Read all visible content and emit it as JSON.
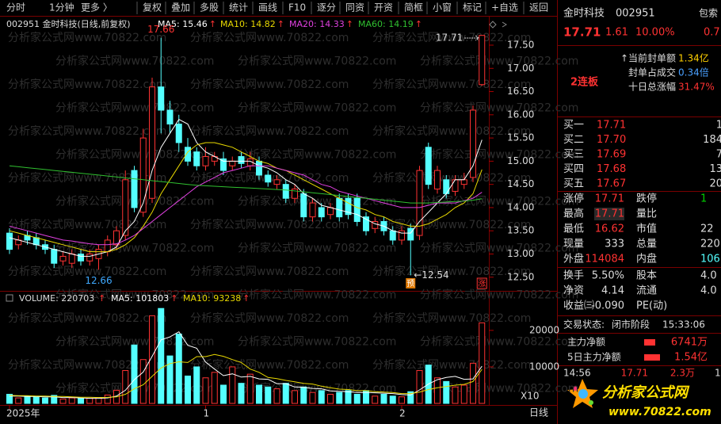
{
  "toolbar": [
    "分时",
    "1分钟",
    "更多 〉",
    "复权",
    "叠加",
    "多股",
    "统计",
    "画线",
    "F10",
    "逐分",
    "同资",
    "开资",
    "简框",
    "小窗",
    "标记",
    "+自选",
    "返回"
  ],
  "watermark": "分析家公式网www.70822.com",
  "chart_data": [
    {
      "type": "candlestick",
      "title": "002951 金时科技(日线,前复权)",
      "categories": [
        "2025年",
        null,
        null,
        null,
        null,
        null,
        null,
        null,
        null,
        null,
        null,
        null,
        null,
        null,
        null,
        null,
        null,
        null,
        null,
        null,
        null,
        null,
        "1",
        null,
        null,
        null,
        null,
        null,
        null,
        null,
        null,
        null,
        null,
        null,
        null,
        null,
        null,
        null,
        null,
        null,
        null,
        null,
        null,
        null,
        "2",
        null,
        null,
        null,
        null,
        null,
        null,
        null,
        null,
        null
      ],
      "open": [
        13.45,
        13.2,
        13.4,
        13.35,
        13.2,
        13.1,
        12.85,
        12.8,
        13.0,
        12.85,
        12.9,
        13.05,
        13.2,
        13.4,
        14.8,
        13.9,
        14.2,
        16.6,
        16.1,
        15.8,
        15.3,
        15.2,
        14.9,
        15.0,
        15.05,
        14.9,
        15.1,
        14.9,
        15.0,
        14.7,
        14.5,
        14.5,
        14.2,
        14.3,
        13.8,
        14.0,
        13.85,
        14.2,
        14.2,
        14.2,
        13.8,
        13.55,
        13.7,
        13.5,
        13.3,
        13.55,
        13.4,
        15.3,
        14.4,
        14.6,
        14.35,
        14.5,
        14.65,
        16.65
      ],
      "high": [
        13.55,
        13.4,
        13.5,
        13.45,
        13.3,
        13.2,
        13.05,
        13.1,
        13.1,
        13.1,
        13.2,
        13.4,
        13.6,
        14.8,
        14.9,
        15.7,
        16.8,
        17.66,
        16.3,
        16.0,
        15.5,
        15.3,
        15.3,
        15.2,
        15.2,
        15.1,
        15.2,
        15.2,
        15.1,
        14.8,
        14.7,
        14.6,
        14.5,
        14.4,
        14.2,
        14.1,
        14.1,
        14.3,
        14.3,
        14.3,
        13.9,
        13.8,
        13.8,
        13.6,
        13.6,
        13.65,
        14.9,
        15.4,
        14.9,
        14.7,
        14.7,
        14.75,
        16.2,
        17.71
      ],
      "low": [
        13.0,
        13.1,
        13.2,
        13.1,
        13.0,
        12.7,
        12.75,
        12.7,
        12.75,
        12.75,
        12.66,
        12.95,
        13.1,
        13.3,
        13.9,
        13.8,
        14.1,
        15.6,
        15.6,
        15.2,
        14.9,
        14.8,
        14.8,
        14.9,
        14.7,
        14.8,
        14.85,
        14.8,
        14.6,
        14.45,
        14.4,
        14.1,
        14.1,
        13.7,
        13.7,
        13.7,
        13.75,
        13.7,
        13.75,
        13.6,
        13.4,
        13.45,
        13.4,
        13.2,
        13.2,
        12.54,
        13.3,
        14.4,
        14.3,
        14.2,
        14.25,
        14.4,
        14.55,
        16.62
      ],
      "close": [
        13.1,
        13.3,
        13.3,
        13.2,
        13.1,
        12.8,
        12.95,
        13.0,
        12.85,
        13.0,
        13.1,
        13.3,
        13.5,
        14.6,
        14.0,
        15.5,
        16.6,
        16.1,
        15.8,
        15.4,
        15.0,
        14.9,
        15.1,
        15.1,
        14.8,
        15.0,
        14.95,
        15.05,
        14.7,
        14.55,
        14.6,
        14.2,
        14.4,
        13.8,
        14.1,
        13.8,
        14.0,
        13.8,
        13.85,
        13.7,
        13.5,
        13.7,
        13.5,
        13.3,
        13.5,
        13.3,
        14.8,
        14.5,
        14.8,
        14.3,
        14.6,
        14.6,
        16.1,
        17.71
      ],
      "up_color": "#ff3232",
      "down_color": "#54ffff",
      "series": [
        {
          "name": "MA5: 15.46",
          "color": "#ffffff",
          "values": [
            13.35,
            13.3,
            13.25,
            13.2,
            13.15,
            13.1,
            13.05,
            13.0,
            12.95,
            12.95,
            13.0,
            13.05,
            13.15,
            13.5,
            13.7,
            14.1,
            14.8,
            15.3,
            15.6,
            15.9,
            15.8,
            15.4,
            15.2,
            15.1,
            15.0,
            15.0,
            15.0,
            15.0,
            14.9,
            14.85,
            14.75,
            14.6,
            14.5,
            14.3,
            14.2,
            14.05,
            14.0,
            13.95,
            13.9,
            13.85,
            13.75,
            13.65,
            13.6,
            13.5,
            13.45,
            13.45,
            13.7,
            13.9,
            14.1,
            14.3,
            14.6,
            14.6,
            14.9,
            15.46
          ]
        },
        {
          "name": "MA10: 14.82",
          "color": "#e8d800",
          "values": [
            13.5,
            13.45,
            13.4,
            13.35,
            13.3,
            13.25,
            13.2,
            13.15,
            13.1,
            13.05,
            13.05,
            13.05,
            13.1,
            13.2,
            13.35,
            13.6,
            13.9,
            14.3,
            14.6,
            14.9,
            15.2,
            15.35,
            15.4,
            15.4,
            15.35,
            15.3,
            15.2,
            15.1,
            15.0,
            14.95,
            14.85,
            14.8,
            14.7,
            14.6,
            14.5,
            14.4,
            14.3,
            14.2,
            14.1,
            14.0,
            13.95,
            13.85,
            13.8,
            13.7,
            13.65,
            13.6,
            13.6,
            13.65,
            13.75,
            13.85,
            14.0,
            14.1,
            14.3,
            14.82
          ]
        },
        {
          "name": "MA20: 14.33",
          "color": "#e040e0",
          "values": [
            13.6,
            13.55,
            13.5,
            13.45,
            13.4,
            13.35,
            13.3,
            13.28,
            13.25,
            13.22,
            13.2,
            13.2,
            13.22,
            13.3,
            13.4,
            13.55,
            13.7,
            13.85,
            14.0,
            14.15,
            14.3,
            14.45,
            14.55,
            14.65,
            14.75,
            14.8,
            14.85,
            14.9,
            14.9,
            14.9,
            14.85,
            14.8,
            14.75,
            14.7,
            14.6,
            14.5,
            14.45,
            14.35,
            14.3,
            14.25,
            14.2,
            14.15,
            14.1,
            14.05,
            14.0,
            14.0,
            14.0,
            14.05,
            14.1,
            14.1,
            14.1,
            14.15,
            14.2,
            14.33
          ]
        },
        {
          "name": "MA60: 14.19",
          "color": "#30c030",
          "values": [
            14.9,
            14.88,
            14.86,
            14.84,
            14.82,
            14.8,
            14.78,
            14.76,
            14.74,
            14.72,
            14.7,
            14.68,
            14.66,
            14.64,
            14.62,
            14.6,
            14.58,
            14.56,
            14.54,
            14.52,
            14.5,
            14.48,
            14.47,
            14.46,
            14.45,
            14.44,
            14.43,
            14.42,
            14.41,
            14.4,
            14.39,
            14.38,
            14.36,
            14.34,
            14.32,
            14.3,
            14.28,
            14.26,
            14.24,
            14.22,
            14.2,
            14.18,
            14.16,
            14.14,
            14.12,
            14.1,
            14.1,
            14.1,
            14.11,
            14.12,
            14.13,
            14.14,
            14.16,
            14.19
          ]
        }
      ],
      "ylim": [
        12.24,
        17.79
      ],
      "yticks": [
        {
          "value": 12.5,
          "label": "12.50"
        },
        {
          "value": 13,
          "label": "13.00"
        },
        {
          "value": 13.5,
          "label": "13.50"
        },
        {
          "value": 14,
          "label": "14.00"
        },
        {
          "value": 14.5,
          "label": "14.50"
        },
        {
          "value": 15,
          "label": "15.00"
        },
        {
          "value": 15.5,
          "label": "15.50"
        },
        {
          "value": 16,
          "label": "16.00"
        },
        {
          "value": 16.5,
          "label": "16.50"
        },
        {
          "value": 17,
          "label": "17.00"
        },
        {
          "value": 17.5,
          "label": "17.50"
        }
      ],
      "annotations": [
        {
          "index": 17,
          "text": "17.66",
          "position": "above",
          "color": "#ff3232"
        },
        {
          "index": 10,
          "text": "12.66",
          "position": "below",
          "color": "#3fa9ff"
        },
        {
          "index": 45,
          "text": "←12.54",
          "position": "right",
          "color": "#dddddd"
        },
        {
          "index": 53,
          "text": "17.71",
          "position": "left",
          "color": "#dddddd"
        }
      ],
      "markers": [
        {
          "index": 45,
          "label": "预"
        },
        {
          "index": 53,
          "label": "涨"
        }
      ],
      "xlabel": "日线"
    },
    {
      "type": "bar",
      "title": "VOLUME: 220703",
      "values": [
        2500,
        1500,
        2000,
        1800,
        1500,
        2200,
        1200,
        1500,
        1300,
        1400,
        1600,
        2300,
        3600,
        9000,
        16000,
        12000,
        24000,
        26000,
        13000,
        19000,
        7500,
        10000,
        7000,
        8500,
        5000,
        10000,
        5500,
        8000,
        5000,
        4500,
        4000,
        5500,
        3500,
        4500,
        3000,
        3500,
        2500,
        3000,
        3500,
        2500,
        3500,
        2000,
        2500,
        2000,
        1800,
        3200,
        9000,
        10500,
        7000,
        6000,
        4500,
        5000,
        11000,
        22070.3
      ],
      "series": [
        {
          "name": "MA5: 101803",
          "color": "#ffffff",
          "values": [
            2000,
            2000,
            1900,
            1900,
            1800,
            1800,
            1600,
            1600,
            1500,
            1400,
            1400,
            1500,
            2000,
            3600,
            6500,
            8600,
            12900,
            17400,
            18200,
            19600,
            15900,
            15100,
            11300,
            9400,
            7600,
            8100,
            7200,
            7400,
            6700,
            6600,
            5400,
            5400,
            4500,
            4400,
            4100,
            4000,
            3400,
            3300,
            3200,
            3000,
            3000,
            2900,
            2800,
            2700,
            2400,
            2300,
            3700,
            5300,
            6500,
            7100,
            7400,
            6600,
            6700,
            10180.3
          ]
        },
        {
          "name": "MA10: 93238",
          "color": "#e8d800",
          "values": [
            2200,
            2100,
            2100,
            2000,
            2000,
            1900,
            1900,
            1800,
            1700,
            1700,
            1600,
            1650,
            1800,
            2500,
            4000,
            5100,
            7400,
            9700,
            10900,
            11400,
            11200,
            12800,
            12800,
            13400,
            12900,
            12000,
            11200,
            9400,
            8500,
            7100,
            6800,
            6300,
            5900,
            5500,
            5300,
            4700,
            4300,
            3900,
            3800,
            3500,
            3500,
            3200,
            3100,
            3000,
            2700,
            2700,
            3100,
            3800,
            4300,
            4600,
            5000,
            5200,
            6000,
            9323.8
          ]
        }
      ],
      "ylim": [
        0,
        28000
      ],
      "yticks": [
        10000,
        20000
      ],
      "unit_label": "X10"
    }
  ],
  "panel": {
    "quote": {
      "name": "金时科技",
      "code": "002951",
      "corner": "包索",
      "price": "17.71",
      "change": "1.61",
      "pct": "10.00%",
      "cut": "0.7"
    },
    "badge": "2连板",
    "seal": [
      [
        "↑当前封单额",
        "1.34亿"
      ],
      [
        "封单占成交",
        "0.34倍"
      ],
      [
        "十日总涨幅",
        "31.47%"
      ]
    ],
    "bids": [
      [
        "买一",
        "17.71",
        "1"
      ],
      [
        "买二",
        "17.70",
        "184"
      ],
      [
        "买三",
        "17.69",
        "7"
      ],
      [
        "买四",
        "17.68",
        "13"
      ],
      [
        "买五",
        "17.67",
        "20"
      ]
    ],
    "stats": [
      [
        "涨停",
        "17.71",
        "跌停",
        "1"
      ],
      [
        "最高",
        "17.71",
        "量比"
      ],
      [
        "最低",
        "16.62",
        "市值",
        "22"
      ],
      [
        "现量",
        "333",
        "总量",
        "220"
      ],
      [
        "外盘",
        "114084",
        "内盘",
        "106"
      ],
      [
        "换手",
        "5.50%",
        "股本",
        "4.0"
      ],
      [
        "净资",
        "4.14",
        "流通",
        "4.0"
      ],
      [
        "收益㈢",
        "-0.090",
        "PE(动)"
      ]
    ],
    "status": [
      "交易状态:",
      "闭市阶段",
      "15:33:06"
    ],
    "flows": [
      [
        "主力净额",
        "6741万"
      ],
      [
        "5日主力净额",
        "1.54亿"
      ]
    ],
    "tick": [
      "14:56",
      "17.71",
      "2.3万",
      "1"
    ],
    "logo": {
      "name": "分析家公式网",
      "url": "www.70822.com"
    }
  }
}
